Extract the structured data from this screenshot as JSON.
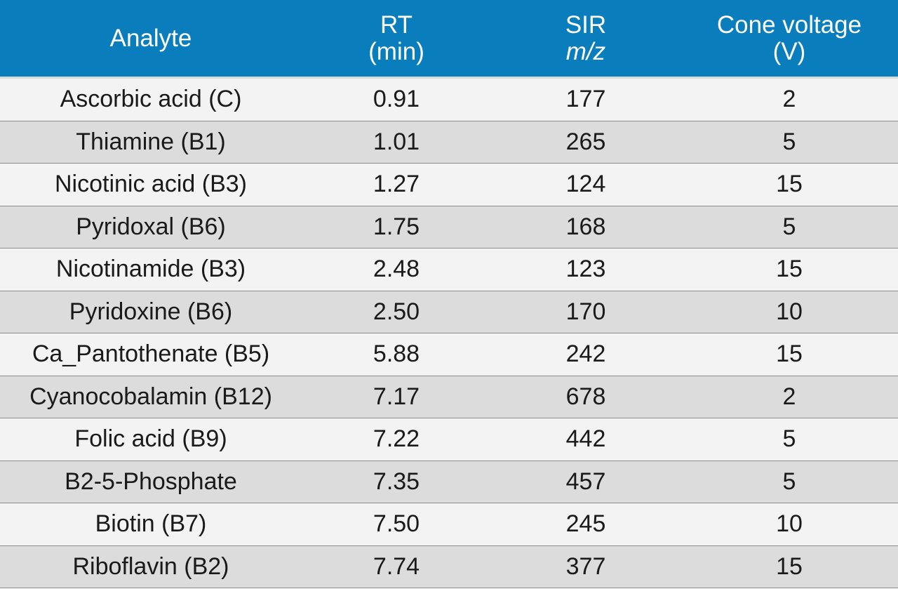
{
  "header": {
    "analyte": "Analyte",
    "rt_line1": "RT",
    "rt_line2": "(min)",
    "sir_line1": "SIR",
    "sir_line2": "m/z",
    "cone_line1": "Cone voltage",
    "cone_line2": "(V)"
  },
  "colors": {
    "header_bg": "#0a7dbc",
    "row_light": "#f3f3f3",
    "row_dark": "#dcdcdc"
  },
  "rows": [
    {
      "analyte": "Ascorbic acid (C)",
      "rt": "0.91",
      "sir": "177",
      "cone": "2"
    },
    {
      "analyte": "Thiamine (B1)",
      "rt": "1.01",
      "sir": "265",
      "cone": "5"
    },
    {
      "analyte": "Nicotinic acid (B3)",
      "rt": "1.27",
      "sir": "124",
      "cone": "15"
    },
    {
      "analyte": "Pyridoxal (B6)",
      "rt": "1.75",
      "sir": "168",
      "cone": "5"
    },
    {
      "analyte": "Nicotinamide (B3)",
      "rt": "2.48",
      "sir": "123",
      "cone": "15"
    },
    {
      "analyte": "Pyridoxine (B6)",
      "rt": "2.50",
      "sir": "170",
      "cone": "10"
    },
    {
      "analyte": "Ca_Pantothenate (B5)",
      "rt": "5.88",
      "sir": "242",
      "cone": "15"
    },
    {
      "analyte": "Cyanocobalamin (B12)",
      "rt": "7.17",
      "sir": "678",
      "cone": "2"
    },
    {
      "analyte": "Folic acid (B9)",
      "rt": "7.22",
      "sir": "442",
      "cone": "5"
    },
    {
      "analyte": "B2-5-Phosphate",
      "rt": "7.35",
      "sir": "457",
      "cone": "5"
    },
    {
      "analyte": "Biotin (B7)",
      "rt": "7.50",
      "sir": "245",
      "cone": "10"
    },
    {
      "analyte": "Riboflavin (B2)",
      "rt": "7.74",
      "sir": "377",
      "cone": "15"
    }
  ]
}
